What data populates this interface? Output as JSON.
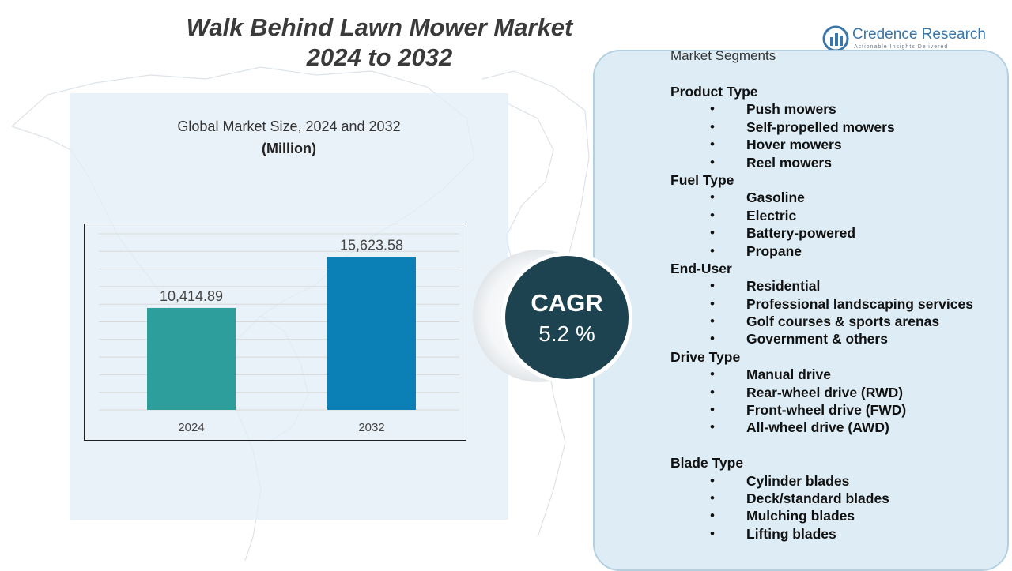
{
  "title": {
    "line1": "Walk Behind Lawn Mower Market",
    "line2": "2024 to 2032"
  },
  "logo": {
    "name": "Credence Research",
    "tagline": "Actionable Insights Delivered",
    "icon": "bar-chart-logo-icon"
  },
  "chart_data": {
    "type": "bar",
    "title": "Global Market Size, 2024 and 2032",
    "unit": "(Million)",
    "categories": [
      "2024",
      "2032"
    ],
    "values": [
      10414.89,
      15623.58
    ],
    "value_labels": [
      "10,414.89",
      "15,623.58"
    ],
    "colors": [
      "#2e9e9c",
      "#0b80b6"
    ],
    "ylim": [
      0,
      18000
    ],
    "grid": true,
    "legend": "none"
  },
  "cagr": {
    "label": "CAGR",
    "value": "5.2 %"
  },
  "segments": {
    "header": "Market Segments",
    "bullet": "•",
    "groups": [
      {
        "title": "Product Type",
        "items": [
          "Push mowers",
          "Self-propelled mowers",
          "Hover mowers",
          "Reel mowers"
        ]
      },
      {
        "title": "Fuel Type",
        "items": [
          "Gasoline",
          "Electric",
          "Battery-powered",
          "Propane"
        ]
      },
      {
        "title": "End-User",
        "items": [
          "Residential",
          "Professional landscaping services",
          "Golf courses & sports arenas",
          "Government & others"
        ]
      },
      {
        "title": "Drive Type",
        "items": [
          "Manual drive",
          "Rear-wheel drive (RWD)",
          "Front-wheel drive (FWD)",
          "All-wheel drive (AWD)"
        ]
      },
      {
        "title": "Blade Type",
        "items": [
          "Cylinder blades",
          "Deck/standard blades",
          "Mulching blades",
          "Lifting blades"
        ]
      }
    ]
  },
  "colors": {
    "panel_bg": "#dcecf4",
    "cagr_circle": "#1d4250",
    "title_text": "#3a3a3a",
    "logo_blue": "#3a76a8"
  }
}
